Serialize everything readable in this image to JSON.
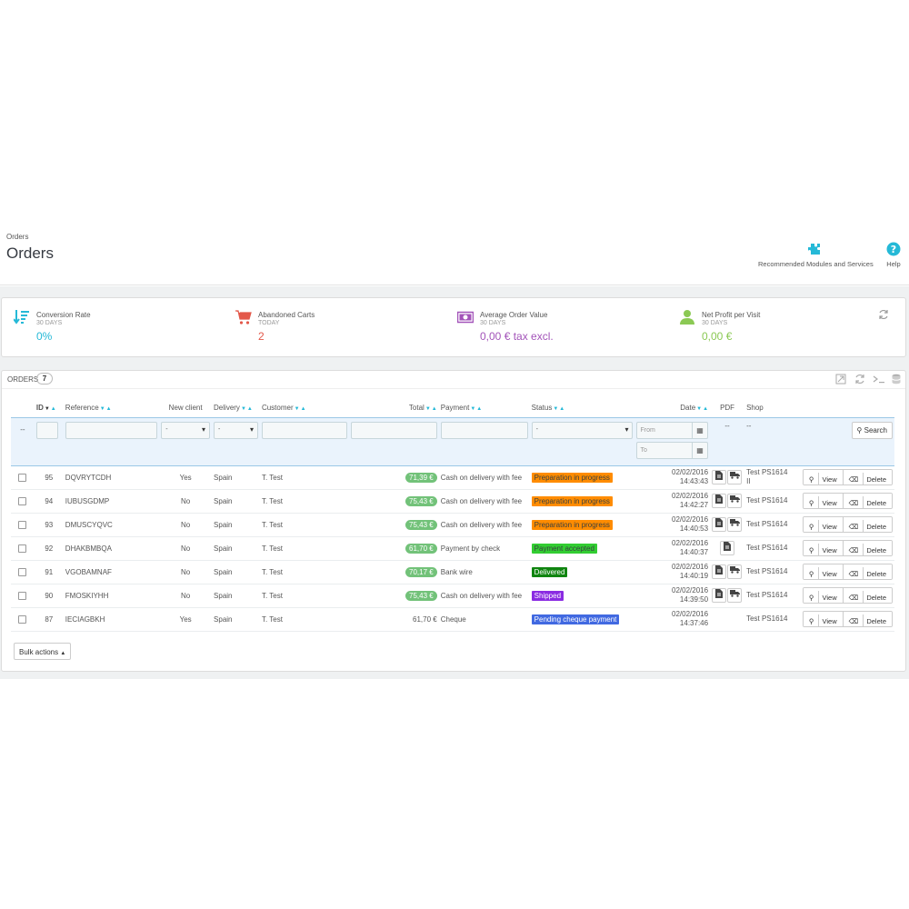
{
  "header": {
    "breadcrumb": "Orders",
    "title": "Orders",
    "toolbar": {
      "modules_label": "Recommended Modules and Services",
      "help_label": "Help"
    }
  },
  "kpis": [
    {
      "title": "Conversion Rate",
      "period": "30 DAYS",
      "value": "0%",
      "color": "#25b9d7",
      "icon": "sort-amount-icon"
    },
    {
      "title": "Abandoned Carts",
      "period": "TODAY",
      "value": "2",
      "color": "#e3584a",
      "icon": "shopping-cart-icon"
    },
    {
      "title": "Average Order Value",
      "period": "30 DAYS",
      "value": "0,00 € tax excl.",
      "color": "#a354b9",
      "icon": "money-icon"
    },
    {
      "title": "Net Profit per Visit",
      "period": "30 DAYS",
      "value": "0,00 €",
      "color": "#8bc954",
      "icon": "user-icon"
    }
  ],
  "orders": {
    "panel_title": "Orders",
    "count": "7",
    "columns": {
      "id": "ID",
      "reference": "Reference",
      "new_client": "New client",
      "delivery": "Delivery",
      "customer": "Customer",
      "total": "Total",
      "payment": "Payment",
      "status": "Status",
      "date": "Date",
      "pdf": "PDF",
      "shop": "Shop"
    },
    "filters": {
      "checkbox_placeholder": "--",
      "new_client_value": "-",
      "delivery_value": "-",
      "status_value": "-",
      "date_from": "From",
      "date_to": "To",
      "pdf_placeholder": "--",
      "shop_placeholder": "--",
      "search_label": "Search"
    },
    "rows": [
      {
        "id": "95",
        "reference": "DQVRYTCDH",
        "new_client": "Yes",
        "delivery": "Spain",
        "customer": "T. Test",
        "total": "71,39 €",
        "payment": "Cash on delivery with fee",
        "status": "Preparation in progress",
        "status_color": "#ff8c00",
        "status_text_color": "#383f40",
        "date": "02/02/2016",
        "time": "14:43:43",
        "shop": "Test PS1614",
        "shop_extra": "II",
        "view": "View",
        "delete": "Delete"
      },
      {
        "id": "94",
        "reference": "IUBUSGDMP",
        "new_client": "No",
        "delivery": "Spain",
        "customer": "T. Test",
        "total": "75,43 €",
        "payment": "Cash on delivery with fee",
        "status": "Preparation in progress",
        "status_color": "#ff8c00",
        "status_text_color": "#383f40",
        "date": "02/02/2016",
        "time": "14:42:27",
        "shop": "Test PS1614",
        "shop_extra": "",
        "view": "View",
        "delete": "Delete"
      },
      {
        "id": "93",
        "reference": "DMUSCYQVC",
        "new_client": "No",
        "delivery": "Spain",
        "customer": "T. Test",
        "total": "75,43 €",
        "payment": "Cash on delivery with fee",
        "status": "Preparation in progress",
        "status_color": "#ff8c00",
        "status_text_color": "#383f40",
        "date": "02/02/2016",
        "time": "14:40:53",
        "shop": "Test PS1614",
        "shop_extra": "",
        "view": "View",
        "delete": "Delete"
      },
      {
        "id": "92",
        "reference": "DHAKBMBQA",
        "new_client": "No",
        "delivery": "Spain",
        "customer": "T. Test",
        "total": "61,70 €",
        "payment": "Payment by check",
        "status": "Payment accepted",
        "status_color": "#32cd32",
        "status_text_color": "#383f40",
        "date": "02/02/2016",
        "time": "14:40:37",
        "shop": "Test PS1614",
        "shop_extra": "",
        "view": "View",
        "delete": "Delete"
      },
      {
        "id": "91",
        "reference": "VGOBAMNAF",
        "new_client": "No",
        "delivery": "Spain",
        "customer": "T. Test",
        "total": "70,17 €",
        "payment": "Bank wire",
        "status": "Delivered",
        "status_color": "#108510",
        "status_text_color": "#ffffff",
        "date": "02/02/2016",
        "time": "14:40:19",
        "shop": "Test PS1614",
        "shop_extra": "",
        "view": "View",
        "delete": "Delete"
      },
      {
        "id": "90",
        "reference": "FMOSKIYHH",
        "new_client": "No",
        "delivery": "Spain",
        "customer": "T. Test",
        "total": "75,43 €",
        "payment": "Cash on delivery with fee",
        "status": "Shipped",
        "status_color": "#8a2be2",
        "status_text_color": "#ffffff",
        "date": "02/02/2016",
        "time": "14:39:50",
        "shop": "Test PS1614",
        "shop_extra": "",
        "view": "View",
        "delete": "Delete"
      },
      {
        "id": "87",
        "reference": "IECIAGBKH",
        "new_client": "Yes",
        "delivery": "Spain",
        "customer": "T. Test",
        "total": "61,70 €",
        "payment": "Cheque",
        "status": "Pending cheque payment",
        "status_color": "#4169e1",
        "status_text_color": "#ffffff",
        "date": "02/02/2016",
        "time": "14:37:46",
        "shop": "Test PS1614",
        "shop_extra": "",
        "view": "View",
        "delete": "Delete"
      }
    ],
    "bulk_actions_label": "Bulk actions"
  }
}
